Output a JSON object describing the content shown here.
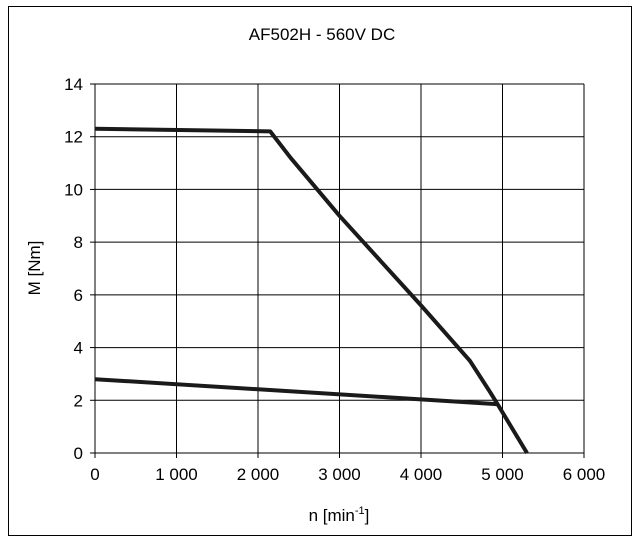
{
  "chart_data": {
    "type": "line",
    "title": "AF502H - 560V DC",
    "xlabel": {
      "base": "n [min",
      "superscript": "-1",
      "suffix": "]"
    },
    "ylabel": "M [Nm]",
    "xlim": [
      0,
      6000
    ],
    "ylim": [
      0,
      14
    ],
    "x_ticks": [
      0,
      1000,
      2000,
      3000,
      4000,
      5000,
      6000
    ],
    "x_tick_labels": [
      "0",
      "1 000",
      "2 000",
      "3 000",
      "4 000",
      "5 000",
      "6 000"
    ],
    "y_ticks": [
      0,
      2,
      4,
      6,
      8,
      10,
      12,
      14
    ],
    "y_tick_labels": [
      "0",
      "2",
      "4",
      "6",
      "8",
      "10",
      "12",
      "14"
    ],
    "grid": true,
    "line_color": "#1a1a1a",
    "series": [
      {
        "x": [
          0,
          2150,
          2400,
          3000,
          4000,
          4600,
          4850,
          4950,
          5300
        ],
        "y": [
          12.3,
          12.2,
          11.2,
          9.0,
          5.6,
          3.5,
          2.3,
          1.8,
          0
        ]
      },
      {
        "x": [
          0,
          4950
        ],
        "y": [
          2.8,
          1.85
        ]
      }
    ]
  }
}
